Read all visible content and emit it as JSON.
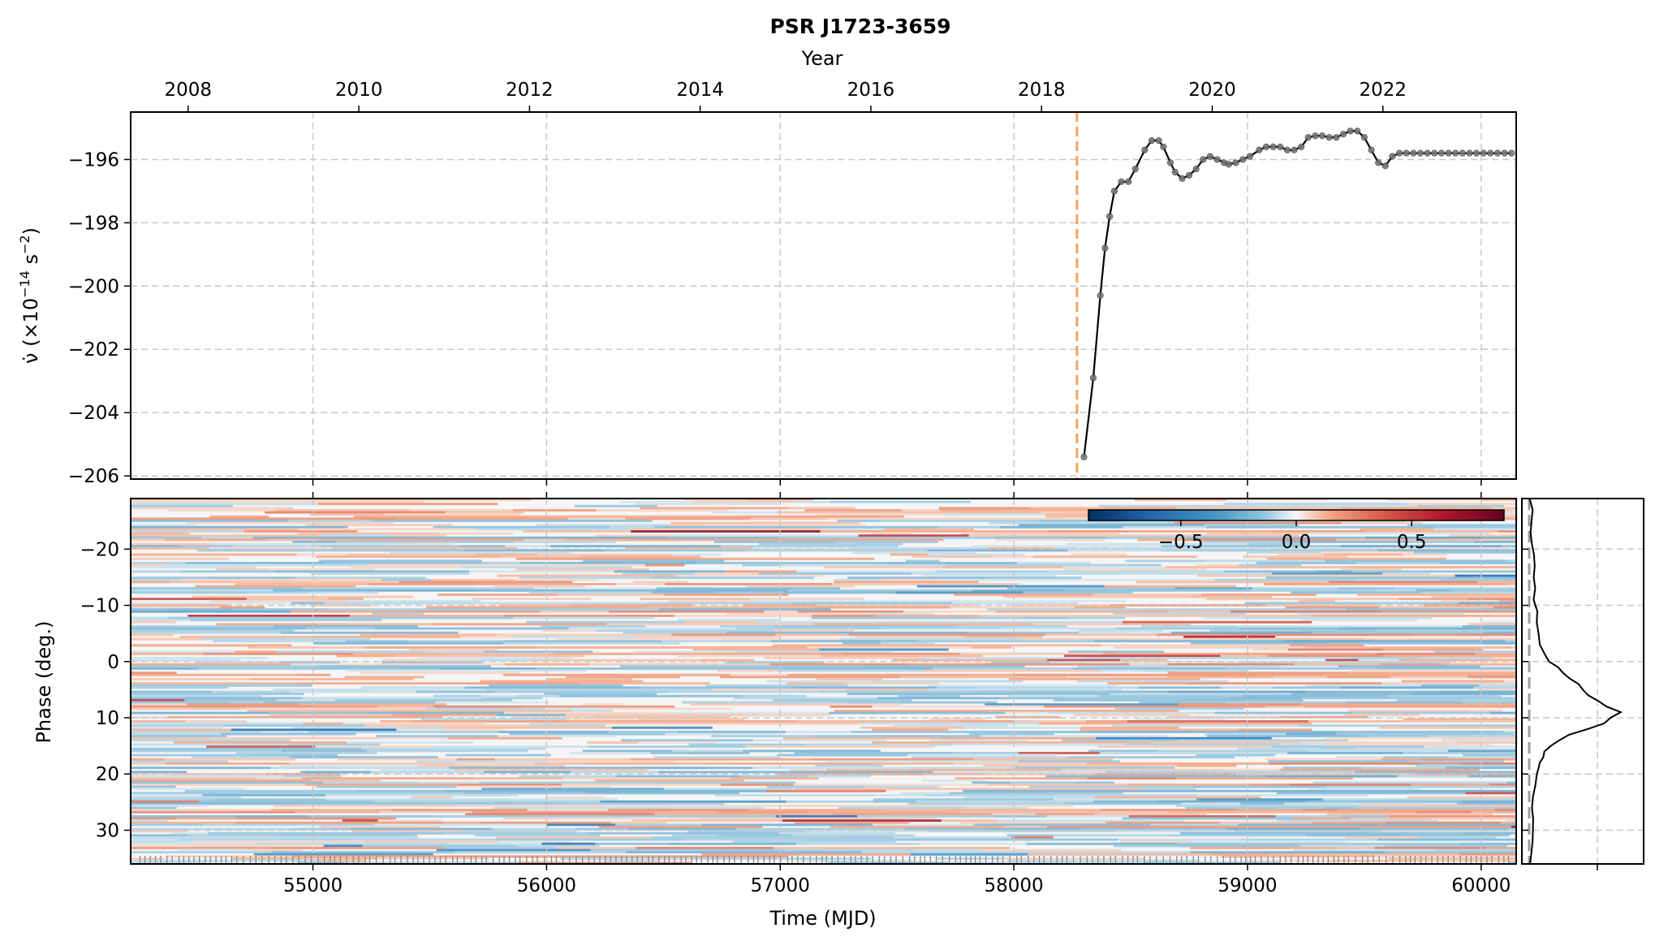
{
  "title": "PSR J1723-3659",
  "chart_data": [
    {
      "panel": "nudot",
      "type": "line",
      "top_axis_label": "Year",
      "top_tick_labels": [
        "2008",
        "2010",
        "2012",
        "2014",
        "2016",
        "2018",
        "2020",
        "2022"
      ],
      "ylabel_prefix": "ν̇ (×10",
      "ylabel_exp": "−14",
      "ylabel_suffix": " s",
      "ylabel_exp2": "−2",
      "ylabel_close": ")",
      "xlim_mjd": [
        54220,
        60150
      ],
      "ylim": [
        -206.1,
        -194.5
      ],
      "yticks": [
        -196,
        -198,
        -200,
        -202,
        -204,
        -206
      ],
      "ytick_labels": [
        "−196",
        "−198",
        "−200",
        "−202",
        "−204",
        "−206"
      ],
      "grid": true,
      "vline_mjd": 58270,
      "vline_color": "#f5a35c",
      "line_color": "#000000",
      "marker_color": "#7a7a7a",
      "x": [
        58300,
        58340,
        58370,
        58390,
        58410,
        58430,
        58460,
        58490,
        58520,
        58560,
        58590,
        58620,
        58640,
        58670,
        58690,
        58720,
        58750,
        58780,
        58810,
        58840,
        58870,
        58900,
        58920,
        58950,
        58980,
        59010,
        59050,
        59080,
        59110,
        59140,
        59170,
        59200,
        59230,
        59260,
        59290,
        59320,
        59350,
        59380,
        59410,
        59440,
        59470,
        59500,
        59530,
        59560,
        59590,
        59620,
        59650,
        59680,
        59710,
        59740,
        59770,
        59800,
        59830,
        59860,
        59890,
        59920,
        59950,
        59980,
        60010,
        60040,
        60070,
        60100,
        60130
      ],
      "y": [
        -205.4,
        -202.9,
        -200.3,
        -198.8,
        -197.8,
        -197.0,
        -196.7,
        -196.7,
        -196.3,
        -195.7,
        -195.4,
        -195.4,
        -195.6,
        -196.1,
        -196.4,
        -196.6,
        -196.5,
        -196.3,
        -196.0,
        -195.9,
        -196.0,
        -196.1,
        -196.15,
        -196.1,
        -196.0,
        -195.9,
        -195.7,
        -195.6,
        -195.6,
        -195.6,
        -195.7,
        -195.7,
        -195.6,
        -195.3,
        -195.25,
        -195.25,
        -195.3,
        -195.3,
        -195.2,
        -195.1,
        -195.1,
        -195.3,
        -195.7,
        -196.1,
        -196.2,
        -195.9,
        -195.8,
        -195.8,
        -195.8,
        -195.8,
        -195.8,
        -195.8,
        -195.8,
        -195.8,
        -195.8,
        -195.8,
        -195.8,
        -195.8,
        -195.8,
        -195.8,
        -195.8,
        -195.8,
        -195.8
      ]
    },
    {
      "panel": "residuals",
      "type": "heatmap",
      "xlabel": "Time (MJD)",
      "ylabel": "Phase (deg.)",
      "xlim": [
        54220,
        60150
      ],
      "ylim": [
        -29,
        36
      ],
      "xticks": [
        55000,
        56000,
        57000,
        58000,
        59000,
        60000
      ],
      "xtick_labels": [
        "55000",
        "56000",
        "57000",
        "58000",
        "59000",
        "60000"
      ],
      "yticks": [
        -20,
        -10,
        0,
        10,
        20,
        30
      ],
      "ytick_labels": [
        "−20",
        "−10",
        "0",
        "10",
        "20",
        "30"
      ],
      "colormap": "RdBu_r",
      "color_range": [
        -0.9,
        0.9
      ],
      "colorbar_ticks": [
        -0.5,
        0.0,
        0.5
      ],
      "colorbar_labels": [
        "−0.5",
        "0.0",
        "0.5"
      ],
      "colors": {
        "negative": "#053061",
        "neutral": "#f5f5f5",
        "positive": "#67001f"
      },
      "observation_rug": true,
      "grid": true
    },
    {
      "panel": "profile",
      "type": "line",
      "ylim": [
        -29,
        36
      ],
      "baseline_color": "#9e9e9e",
      "phase": [
        -29,
        -27,
        -25,
        -23,
        -21,
        -19,
        -17,
        -15,
        -13,
        -11,
        -9,
        -7,
        -5,
        -3,
        -1,
        0,
        1,
        2,
        3,
        4,
        5,
        6,
        7,
        8,
        9,
        10,
        11,
        12,
        13,
        14,
        15,
        16,
        17,
        18,
        19,
        20,
        22,
        24,
        26,
        28,
        30,
        32,
        34,
        36
      ],
      "intensity": [
        0.02,
        0.03,
        0.04,
        0.03,
        0.04,
        0.05,
        0.04,
        0.05,
        0.06,
        0.05,
        0.07,
        0.08,
        0.1,
        0.12,
        0.16,
        0.2,
        0.28,
        0.35,
        0.42,
        0.5,
        0.55,
        0.62,
        0.7,
        0.8,
        0.95,
        0.82,
        0.78,
        0.6,
        0.42,
        0.3,
        0.22,
        0.17,
        0.14,
        0.12,
        0.1,
        0.08,
        0.06,
        0.05,
        0.04,
        0.03,
        0.03,
        0.02,
        0.02,
        0.02
      ]
    }
  ]
}
